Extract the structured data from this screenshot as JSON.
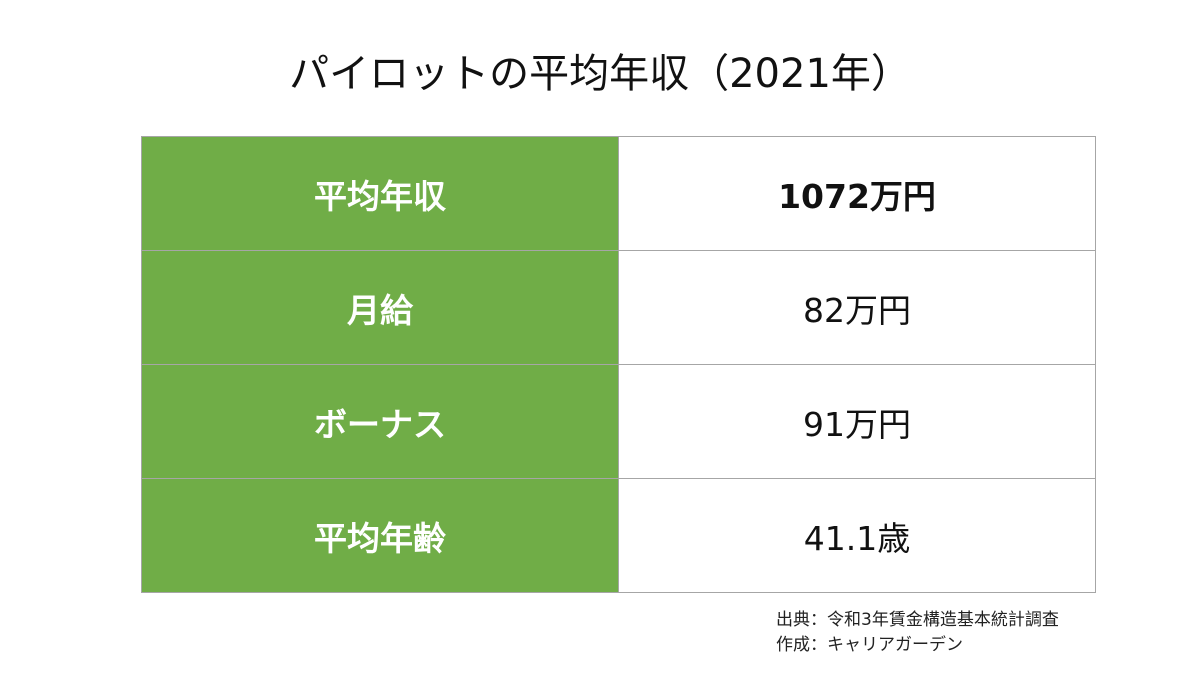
{
  "header": {
    "title": "パイロットの平均年収（2021年）"
  },
  "table": {
    "rows": [
      [
        "平均年収",
        "1072万円"
      ],
      [
        "月給",
        "82万円"
      ],
      [
        "ボーナス",
        "91万円"
      ],
      [
        "平均年齢",
        "41.1歳"
      ]
    ]
  },
  "footer": {
    "lines": [
      "出典：令和3年賃金構造基本統計調査",
      "作成：キャリアガーデン"
    ]
  }
}
